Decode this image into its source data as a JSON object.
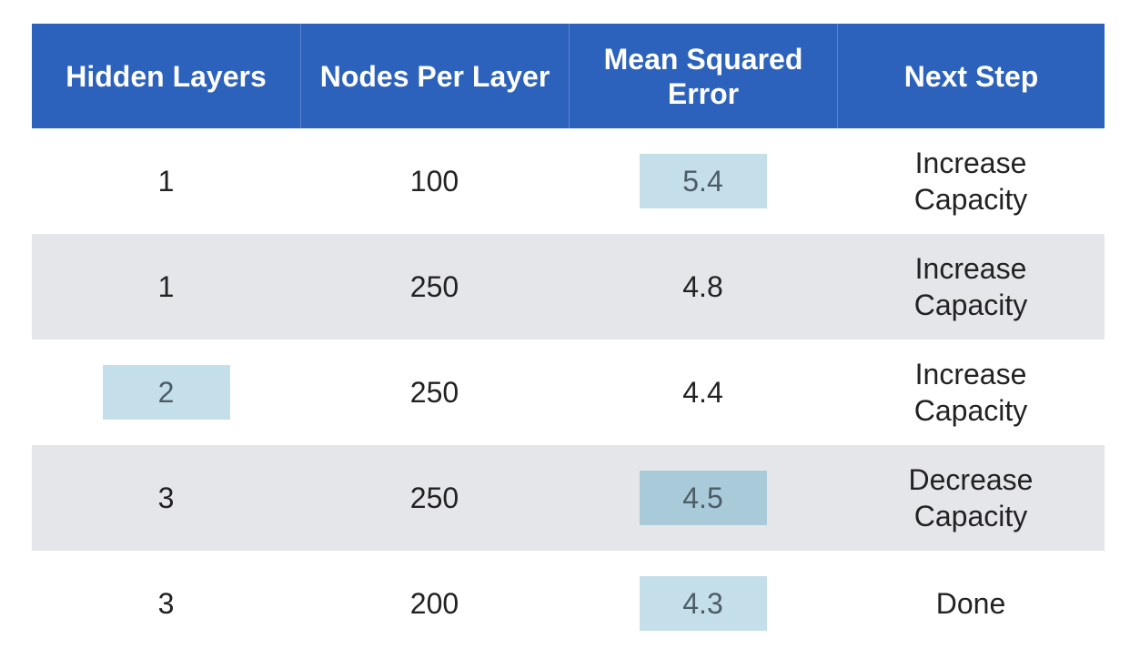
{
  "chart_data": {
    "type": "table",
    "columns": [
      "Hidden Layers",
      "Nodes Per Layer",
      "Mean Squared Error",
      "Next Step"
    ],
    "rows": [
      {
        "hidden_layers": "1",
        "nodes_per_layer": "100",
        "mse": "5.4",
        "next_step": "Increase Capacity"
      },
      {
        "hidden_layers": "1",
        "nodes_per_layer": "250",
        "mse": "4.8",
        "next_step": "Increase Capacity"
      },
      {
        "hidden_layers": "2",
        "nodes_per_layer": "250",
        "mse": "4.4",
        "next_step": "Increase Capacity"
      },
      {
        "hidden_layers": "3",
        "nodes_per_layer": "250",
        "mse": "4.5",
        "next_step": "Decrease Capacity"
      },
      {
        "hidden_layers": "3",
        "nodes_per_layer": "200",
        "mse": "4.3",
        "next_step": "Done"
      }
    ],
    "highlights": [
      {
        "row": 0,
        "column": "mse",
        "shade": "light"
      },
      {
        "row": 2,
        "column": "hidden_layers",
        "shade": "light"
      },
      {
        "row": 3,
        "column": "mse",
        "shade": "dark"
      },
      {
        "row": 4,
        "column": "mse",
        "shade": "light"
      }
    ]
  },
  "colors": {
    "header_bg": "#2c62bb",
    "header_text": "#ffffff",
    "row_alt_bg": "#e5e6ea",
    "highlight_light": "#c5dfea",
    "highlight_dark": "#a9cad8"
  }
}
